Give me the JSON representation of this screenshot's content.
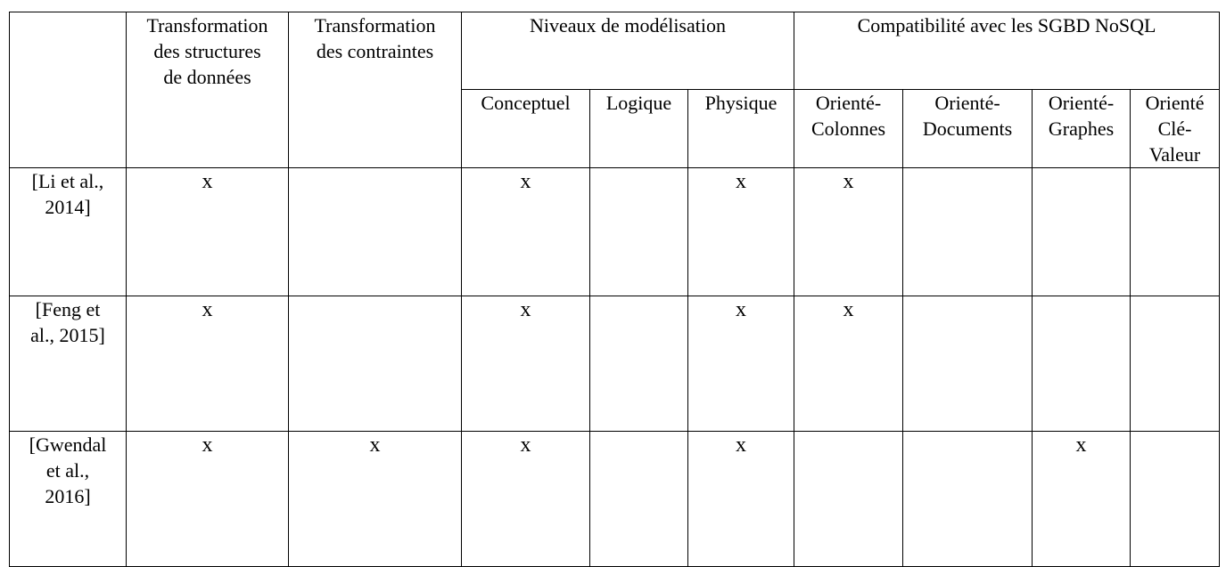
{
  "headers": {
    "transformation_structures": [
      "Transformation",
      "des structures",
      "de données"
    ],
    "transformation_contraintes": [
      "Transformation",
      "des contraintes"
    ],
    "niveaux": "Niveaux de modélisation",
    "compatibilite": "Compatibilité avec les SGBD NoSQL",
    "niveaux_sub": [
      [
        "Conceptuel"
      ],
      [
        "Logique"
      ],
      [
        "Physique"
      ]
    ],
    "compat_sub": [
      [
        "Orienté-",
        "Colonnes"
      ],
      [
        "Orienté-",
        "Documents"
      ],
      [
        "Orienté-",
        "Graphes"
      ],
      [
        "Orienté",
        "Clé-",
        "Valeur"
      ]
    ]
  },
  "rows": [
    {
      "ref": [
        "[Li et al.,",
        "2014]"
      ],
      "cells": [
        "x",
        "",
        "x",
        "",
        "x",
        "x",
        "",
        "",
        ""
      ]
    },
    {
      "ref": [
        "[Feng et",
        "al., 2015]"
      ],
      "cells": [
        "x",
        "",
        "x",
        "",
        "x",
        "x",
        "",
        "",
        ""
      ]
    },
    {
      "ref": [
        "[Gwendal",
        "et al.,",
        "2016]"
      ],
      "cells": [
        "x",
        "x",
        "x",
        "",
        "x",
        "",
        "",
        "x",
        ""
      ]
    }
  ]
}
